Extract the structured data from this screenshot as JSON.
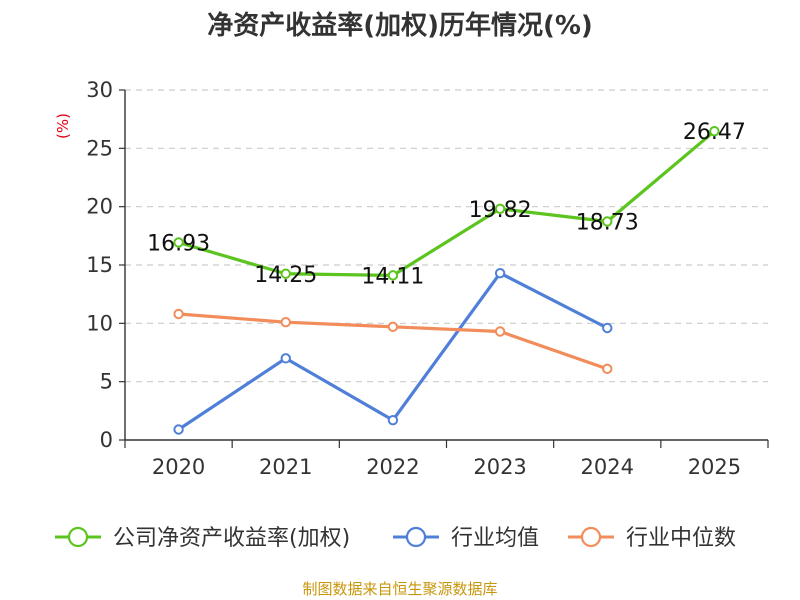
{
  "chart_data": {
    "type": "line",
    "title": "净资产收益率(加权)历年情况(%)",
    "ylabel": "(%)",
    "xlabel": "",
    "categories": [
      "2020",
      "2021",
      "2022",
      "2023",
      "2024",
      "2025"
    ],
    "ylim": [
      0,
      30
    ],
    "yticks": [
      0,
      5,
      10,
      15,
      20,
      25,
      30
    ],
    "grid": "horizontal-dashed",
    "legend_position": "bottom",
    "series": [
      {
        "name": "公司净资产收益率(加权)",
        "color": "#5cc41f",
        "values": [
          16.93,
          14.25,
          14.11,
          19.82,
          18.73,
          26.47
        ],
        "labels": [
          "16.93",
          "14.25",
          "14.11",
          "19.82",
          "18.73",
          "26.47"
        ]
      },
      {
        "name": "行业均值",
        "color": "#4f7fd8",
        "values": [
          0.9,
          7.0,
          1.7,
          14.3,
          9.6,
          null
        ]
      },
      {
        "name": "行业中位数",
        "color": "#f28c5a",
        "values": [
          10.8,
          10.1,
          9.7,
          9.3,
          6.1,
          null
        ]
      }
    ],
    "source": "制图数据来自恒生聚源数据库"
  }
}
